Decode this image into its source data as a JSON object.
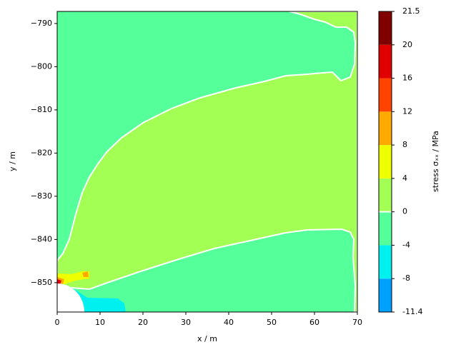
{
  "chart_data": {
    "type": "contour",
    "xlabel": "x / m",
    "ylabel": "y / m",
    "colorbar_label": "stress σₓₓ / MPa",
    "xlim": [
      0,
      70
    ],
    "ylim": [
      -856.8,
      -787.2
    ],
    "xticks": [
      0,
      10,
      20,
      30,
      40,
      50,
      60,
      70
    ],
    "yticks": [
      {
        "value": -850,
        "label": "−850"
      },
      {
        "value": -840,
        "label": "−840"
      },
      {
        "value": -830,
        "label": "−830"
      },
      {
        "value": -820,
        "label": "−820"
      },
      {
        "value": -810,
        "label": "−810"
      },
      {
        "value": -800,
        "label": "−800"
      },
      {
        "value": -790,
        "label": "−790"
      }
    ],
    "levels": [
      -11.4,
      -8,
      -4,
      0,
      4,
      8,
      12,
      16,
      20,
      21.5
    ],
    "colors": [
      "#00a0ff",
      "#00f0f0",
      "#55ff99",
      "#a4ff55",
      "#eeff00",
      "#ffaa00",
      "#ff4400",
      "#e00000",
      "#800000"
    ]
  }
}
